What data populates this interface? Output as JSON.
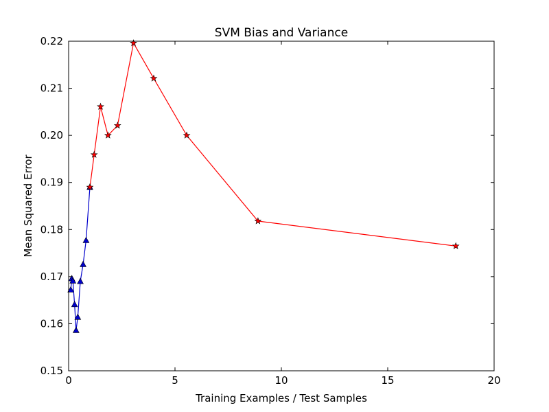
{
  "chart_data": {
    "type": "line",
    "title": "SVM Bias and Variance",
    "xlabel": "Training Examples / Test Samples",
    "ylabel": "Mean Squared Error",
    "xlim": [
      0,
      20
    ],
    "ylim": [
      0.15,
      0.22
    ],
    "xticks": [
      0,
      5,
      10,
      15,
      20
    ],
    "xtick_labels": [
      "0",
      "5",
      "10",
      "15",
      "20"
    ],
    "yticks": [
      0.15,
      0.16,
      0.17,
      0.18,
      0.19,
      0.2,
      0.21,
      0.22
    ],
    "ytick_labels": [
      "0.15",
      "0.16",
      "0.17",
      "0.18",
      "0.19",
      "0.20",
      "0.21",
      "0.22"
    ],
    "grid": false,
    "series": [
      {
        "color": "#0000cc",
        "marker": "triangle",
        "x": [
          0.1,
          0.15,
          0.2,
          0.28,
          0.35,
          0.43,
          0.55,
          0.68,
          0.82,
          1.0
        ],
        "y": [
          0.1672,
          0.1696,
          0.1691,
          0.1641,
          0.1586,
          0.1614,
          0.169,
          0.1726,
          0.1777,
          0.189
        ]
      },
      {
        "color": "#ff0000",
        "marker": "star",
        "x": [
          1.0,
          1.2,
          1.5,
          1.85,
          2.3,
          3.05,
          4.0,
          5.55,
          8.9,
          18.2
        ],
        "y": [
          0.189,
          0.1959,
          0.2061,
          0.2,
          0.2021,
          0.2196,
          0.2121,
          0.2,
          0.1818,
          0.1765
        ]
      }
    ]
  }
}
